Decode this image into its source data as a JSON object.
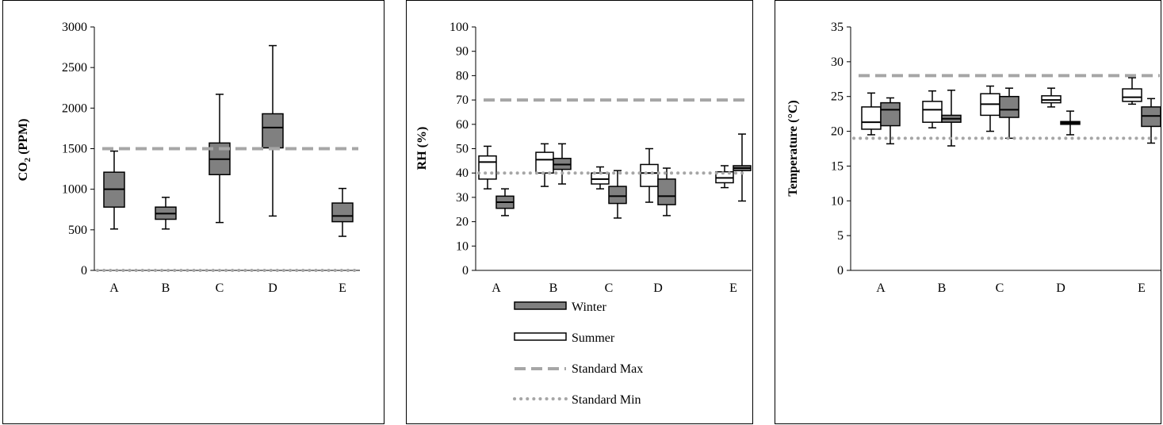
{
  "chart_data": [
    {
      "type": "boxplot",
      "ylabel_main": "CO",
      "ylabel_sub": "2",
      "ylabel_rest": " (PPM)",
      "ylim": [
        0,
        3000
      ],
      "yticks": [
        0,
        500,
        1000,
        1500,
        2000,
        2500,
        3000
      ],
      "categories": [
        "A",
        "B",
        "C",
        "D",
        "E"
      ],
      "standard_max": 1500,
      "standard_min": 0,
      "series": [
        {
          "name": "Winter",
          "boxes": [
            {
              "category": "A",
              "min": 510,
              "q1": 780,
              "median": 1000,
              "q3": 1210,
              "max": 1470
            },
            {
              "category": "B",
              "min": 510,
              "q1": 630,
              "median": 700,
              "q3": 780,
              "max": 900
            },
            {
              "category": "C",
              "min": 590,
              "q1": 1180,
              "median": 1370,
              "q3": 1570,
              "max": 2170
            },
            {
              "category": "D",
              "min": 670,
              "q1": 1510,
              "median": 1760,
              "q3": 1930,
              "max": 2770
            },
            {
              "category": "E",
              "min": 420,
              "q1": 600,
              "median": 670,
              "q3": 830,
              "max": 1010
            }
          ]
        }
      ]
    },
    {
      "type": "boxplot",
      "ylabel": "RH (%)",
      "ylim": [
        0,
        100
      ],
      "yticks": [
        0,
        10,
        20,
        30,
        40,
        50,
        60,
        70,
        80,
        90,
        100
      ],
      "categories": [
        "A",
        "B",
        "C",
        "D",
        "E"
      ],
      "standard_max": 70,
      "standard_min": 40,
      "series": [
        {
          "name": "Summer",
          "boxes": [
            {
              "category": "A",
              "min": 33.5,
              "q1": 37.5,
              "median": 44.5,
              "q3": 47,
              "max": 51
            },
            {
              "category": "B",
              "min": 34.5,
              "q1": 40,
              "median": 45.5,
              "q3": 48.5,
              "max": 52
            },
            {
              "category": "C",
              "min": 33.5,
              "q1": 35.5,
              "median": 37.5,
              "q3": 40,
              "max": 42.5
            },
            {
              "category": "D",
              "min": 28,
              "q1": 34.5,
              "median": 40,
              "q3": 43.5,
              "max": 50
            },
            {
              "category": "E",
              "min": 34,
              "q1": 36,
              "median": 38,
              "q3": 40.5,
              "max": 43
            }
          ]
        },
        {
          "name": "Winter",
          "boxes": [
            {
              "category": "A",
              "min": 22.5,
              "q1": 25.5,
              "median": 28,
              "q3": 30.5,
              "max": 33.5
            },
            {
              "category": "B",
              "min": 35.5,
              "q1": 41.5,
              "median": 43.5,
              "q3": 46,
              "max": 52
            },
            {
              "category": "C",
              "min": 21.5,
              "q1": 27.5,
              "median": 30.5,
              "q3": 34.5,
              "max": 41
            },
            {
              "category": "D",
              "min": 22.5,
              "q1": 27,
              "median": 30.5,
              "q3": 37.5,
              "max": 42
            },
            {
              "category": "E",
              "min": 28.5,
              "q1": 41,
              "median": 42,
              "q3": 43,
              "max": 56
            }
          ]
        }
      ],
      "legend": {
        "winter": "Winter",
        "summer": "Summer",
        "standard_max": "Standard Max",
        "standard_min": "Standard Min"
      }
    },
    {
      "type": "boxplot",
      "ylabel": "Temperature (°C)",
      "ylim": [
        0,
        35
      ],
      "yticks": [
        0,
        5,
        10,
        15,
        20,
        25,
        30,
        35
      ],
      "categories": [
        "A",
        "B",
        "C",
        "D",
        "E"
      ],
      "standard_max": 28,
      "standard_min": 19,
      "series": [
        {
          "name": "Summer",
          "boxes": [
            {
              "category": "A",
              "min": 19.5,
              "q1": 20.3,
              "median": 21.3,
              "q3": 23.5,
              "max": 25.5
            },
            {
              "category": "B",
              "min": 20.5,
              "q1": 21.3,
              "median": 23.1,
              "q3": 24.3,
              "max": 25.8
            },
            {
              "category": "C",
              "min": 20,
              "q1": 22.3,
              "median": 23.9,
              "q3": 25.4,
              "max": 26.5
            },
            {
              "category": "D",
              "min": 23.5,
              "q1": 24.1,
              "median": 24.5,
              "q3": 25.1,
              "max": 26.2
            },
            {
              "category": "E",
              "min": 23.9,
              "q1": 24.3,
              "median": 24.9,
              "q3": 26.1,
              "max": 27.7
            }
          ]
        },
        {
          "name": "Winter",
          "boxes": [
            {
              "category": "A",
              "min": 18.2,
              "q1": 20.8,
              "median": 23.1,
              "q3": 24.1,
              "max": 24.8
            },
            {
              "category": "B",
              "min": 17.9,
              "q1": 21.3,
              "median": 21.8,
              "q3": 22.3,
              "max": 25.9
            },
            {
              "category": "C",
              "min": 19,
              "q1": 22,
              "median": 23.1,
              "q3": 25,
              "max": 26.2
            },
            {
              "category": "D",
              "min": 19.5,
              "q1": 21,
              "median": 21.2,
              "q3": 21.4,
              "max": 22.9
            },
            {
              "category": "E",
              "min": 18.3,
              "q1": 20.7,
              "median": 22.2,
              "q3": 23.5,
              "max": 24.7
            }
          ]
        }
      ]
    }
  ],
  "colors": {
    "winter_fill": "#808080",
    "summer_fill": "#ffffff",
    "standard_max": "#a6a6a6",
    "standard_min": "#a6a6a6"
  }
}
